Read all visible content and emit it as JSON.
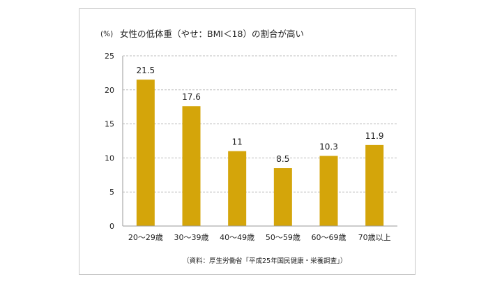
{
  "chart_data": {
    "type": "bar",
    "title": "女性の低体重（やせ：BMI＜18）の割合が高い",
    "ylabel": "(%)",
    "xlabel": "",
    "categories": [
      "20〜29歳",
      "30〜39歳",
      "40〜49歳",
      "50〜59歳",
      "60〜69歳",
      "70歳以上"
    ],
    "values": [
      21.5,
      17.6,
      11,
      8.5,
      10.3,
      11.9
    ],
    "value_labels": [
      "21.5",
      "17.6",
      "11",
      "8.5",
      "10.3",
      "11.9"
    ],
    "ylim": [
      0,
      25
    ],
    "yticks": [
      0,
      5,
      10,
      15,
      20,
      25
    ],
    "grid": true,
    "legend": "none",
    "bar_color": "#d4a50a",
    "source": "（資料：厚生労働省「平成25年国民健康・栄養調査」）"
  }
}
